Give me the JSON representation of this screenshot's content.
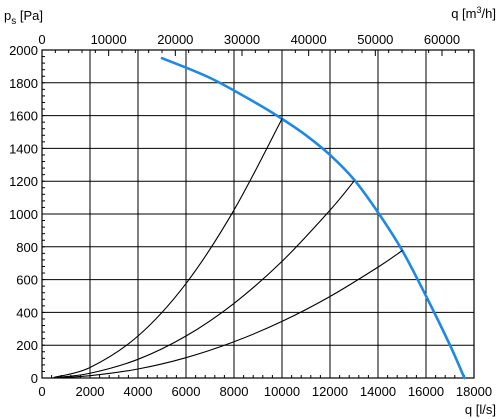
{
  "chart_data": {
    "type": "line",
    "y_axis": {
      "label_main": "p",
      "label_sub": "s",
      "label_unit": " [Pa]",
      "range": [
        0,
        2000
      ],
      "ticks": [
        0,
        200,
        400,
        600,
        800,
        1000,
        1200,
        1400,
        1600,
        1800,
        2000
      ]
    },
    "x_axis_bottom": {
      "label": "q [l/s]",
      "range": [
        0,
        18000
      ],
      "ticks": [
        0,
        2000,
        4000,
        6000,
        8000,
        10000,
        12000,
        14000,
        16000,
        18000
      ]
    },
    "x_axis_top": {
      "label_main": "q [m",
      "label_sup": "3",
      "label_tail": "/h]",
      "range": [
        0,
        64800
      ],
      "ticks": [
        0,
        10000,
        20000,
        30000,
        40000,
        50000,
        60000
      ]
    },
    "grid": true,
    "series": [
      {
        "color": "#1e88e5",
        "x": [
          5000,
          7000,
          9000,
          10000,
          11000,
          12000,
          13000,
          14000,
          15000,
          16000,
          17000,
          17600
        ],
        "y": [
          1950,
          1830,
          1670,
          1580,
          1480,
          1360,
          1210,
          1010,
          780,
          500,
          200,
          0
        ]
      },
      {
        "color": "#000000",
        "x": [
          500,
          2000,
          4000,
          6000,
          8000,
          10000
        ],
        "y": [
          4,
          64,
          256,
          576,
          1024,
          1580
        ]
      },
      {
        "color": "#000000",
        "x": [
          500,
          2000,
          4000,
          6000,
          8000,
          10000,
          12000,
          13000
        ],
        "y": [
          2,
          29,
          114,
          256,
          455,
          711,
          1023,
          1200
        ]
      },
      {
        "color": "#000000",
        "x": [
          500,
          2000,
          4000,
          6000,
          8000,
          10000,
          12000,
          14000,
          15000
        ],
        "y": [
          1,
          14,
          55,
          124,
          221,
          345,
          497,
          676,
          776
        ]
      }
    ]
  }
}
